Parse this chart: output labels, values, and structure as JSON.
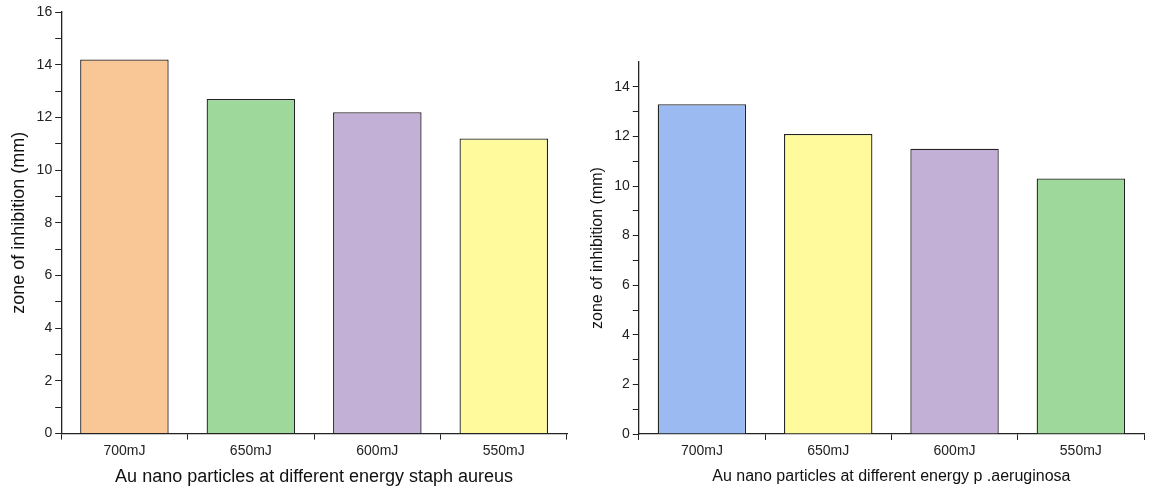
{
  "chart_data": [
    {
      "type": "bar",
      "xlabel": "Au nano particles at different energy staph aureus",
      "ylabel": "zone of inhibition (mm)",
      "categories": [
        "700mJ",
        "650mJ",
        "600mJ",
        "550mJ"
      ],
      "values": [
        14.2,
        12.7,
        12.2,
        11.2
      ],
      "colors": [
        "#f9c795",
        "#9fd89b",
        "#c2b0d6",
        "#fffb9c"
      ],
      "ylim": [
        0,
        16
      ],
      "yticks": [
        0,
        {
          "value": 1,
          "label": null
        },
        2,
        {
          "value": 3,
          "label": null
        },
        4,
        {
          "value": 5,
          "label": null
        },
        6,
        {
          "value": 7,
          "label": null
        },
        8,
        {
          "value": 9,
          "label": null
        },
        10,
        {
          "value": 11,
          "label": null
        },
        12,
        {
          "value": 13,
          "label": null
        },
        14,
        {
          "value": 15,
          "label": null
        },
        16
      ]
    },
    {
      "type": "bar",
      "xlabel": "Au nano particles at different energy p .aeruginosa",
      "ylabel": "zone of inhibition (mm)",
      "categories": [
        "700mJ",
        "650mJ",
        "600mJ",
        "550mJ"
      ],
      "values": [
        13.3,
        12.1,
        11.5,
        10.3
      ],
      "colors": [
        "#9cbaf2",
        "#fffb9c",
        "#c2b0d6",
        "#9fd89b"
      ],
      "ylim": [
        0,
        15
      ],
      "yticks": [
        0,
        {
          "value": 1,
          "label": null
        },
        2,
        {
          "value": 3,
          "label": null
        },
        4,
        {
          "value": 5,
          "label": null
        },
        6,
        {
          "value": 7,
          "label": null
        },
        8,
        {
          "value": 9,
          "label": null
        },
        10,
        {
          "value": 11,
          "label": null
        },
        12,
        {
          "value": 13,
          "label": null
        },
        14
      ]
    }
  ]
}
